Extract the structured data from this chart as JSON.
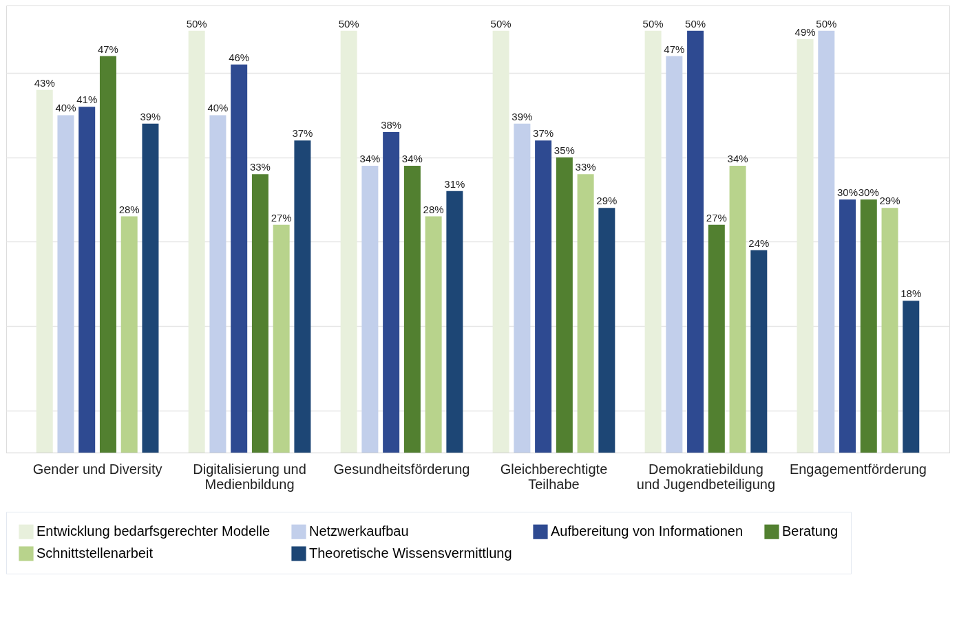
{
  "chart_data": {
    "type": "bar",
    "categories": [
      "Gender und Diversity",
      "Digitalisierung und\nMedienbildung",
      "Gesundheitsförderung",
      "Gleichberechtigte\nTeilhabe",
      "Demokratiebildung\nund Jugendbeteiligung",
      "Engagementförderung"
    ],
    "series": [
      {
        "name": "Entwicklung bedarfsgerechter Modelle",
        "color": "#e8f0dc",
        "values": [
          43,
          50,
          50,
          50,
          50,
          49
        ],
        "value_labels": [
          "43%",
          "50%",
          "50%",
          "50%",
          "50%",
          "49%"
        ]
      },
      {
        "name": "Netzwerkaufbau",
        "color": "#c2cfeb",
        "values": [
          40,
          40,
          34,
          39,
          47,
          50
        ],
        "value_labels": [
          "40%",
          "40%",
          "34%",
          "39%",
          "47%",
          "50%"
        ]
      },
      {
        "name": "Aufbereitung von Informationen",
        "color": "#2e4a91",
        "values": [
          41,
          46,
          38,
          37,
          50,
          30
        ],
        "value_labels": [
          "41%",
          "46%",
          "38%",
          "37%",
          "50%",
          "30%"
        ]
      },
      {
        "name": "Beratung",
        "color": "#528030",
        "values": [
          47,
          33,
          34,
          35,
          27,
          30
        ],
        "value_labels": [
          "47%",
          "33%",
          "34%",
          "35%",
          "27%",
          "30%"
        ]
      },
      {
        "name": "Schnittstellenarbeit",
        "color": "#b8d38c",
        "values": [
          28,
          27,
          28,
          33,
          34,
          29
        ],
        "value_labels": [
          "28%",
          "27%",
          "28%",
          "33%",
          "34%",
          "29%"
        ]
      },
      {
        "name": "Theoretische Wissensvermittlung",
        "color": "#1d4675",
        "values": [
          39,
          37,
          31,
          29,
          24,
          18
        ],
        "value_labels": [
          "39%",
          "37%",
          "31%",
          "29%",
          "24%",
          "18%"
        ]
      }
    ],
    "ylim": [
      0,
      53
    ],
    "yticks": [
      {
        "value": 5,
        "label": null
      },
      {
        "value": 15,
        "label": null
      },
      {
        "value": 25,
        "label": null
      },
      {
        "value": 35,
        "label": null
      },
      {
        "value": 45,
        "label": null
      }
    ],
    "tick_labels": "x",
    "grid": "y",
    "legend": "bottom"
  }
}
